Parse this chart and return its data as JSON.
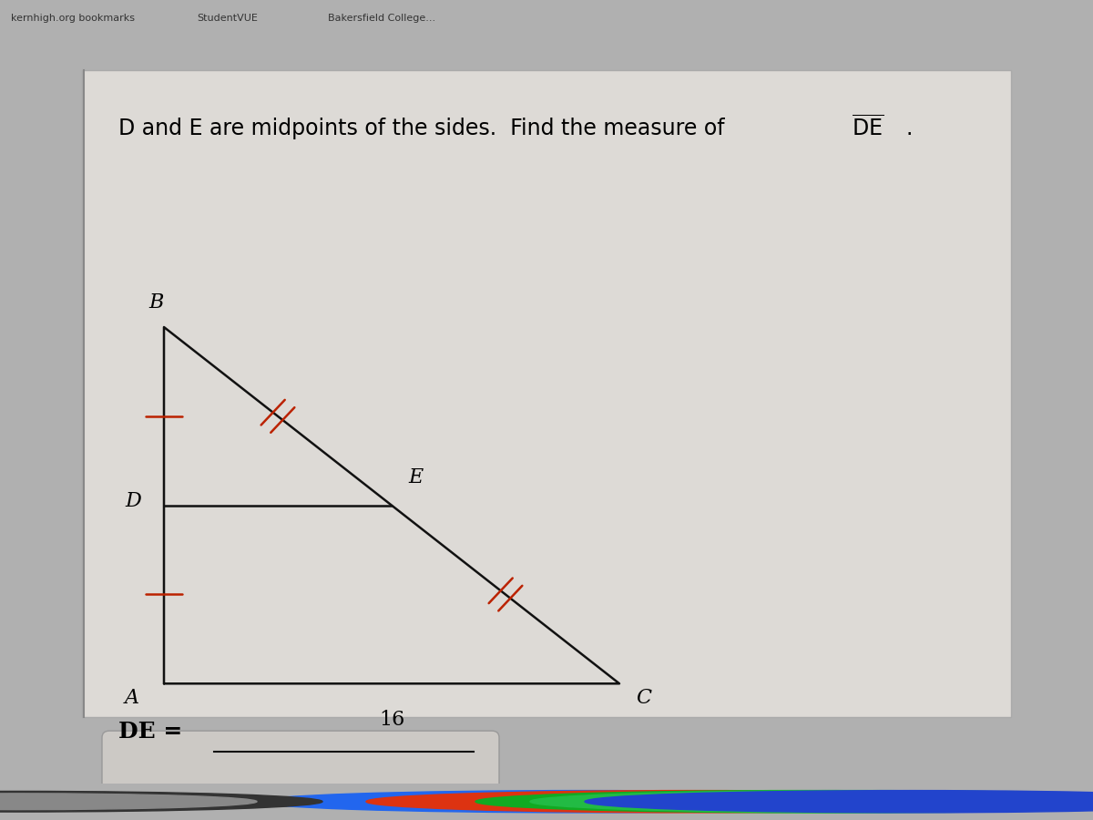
{
  "bg_outer": "#b0b0b0",
  "bg_browser_top": "#d0d0d0",
  "bg_content": "#d4d0cc",
  "bg_panel": "#d8d4d0",
  "title_part1": "D and E are midpoints of the sides.  Find the measure of ",
  "title_overline": "DE",
  "title_period": ".",
  "A": [
    1.8,
    1.2
  ],
  "B": [
    1.8,
    5.5
  ],
  "C": [
    6.8,
    1.2
  ],
  "ac_label": "16",
  "de_label": "DE =",
  "tick_color": "#bb2200",
  "line_color": "#111111",
  "answer_line_color": "#111111",
  "taskbar_color": "#1a1a1a",
  "browser_bar_color": "#c0c0c0"
}
